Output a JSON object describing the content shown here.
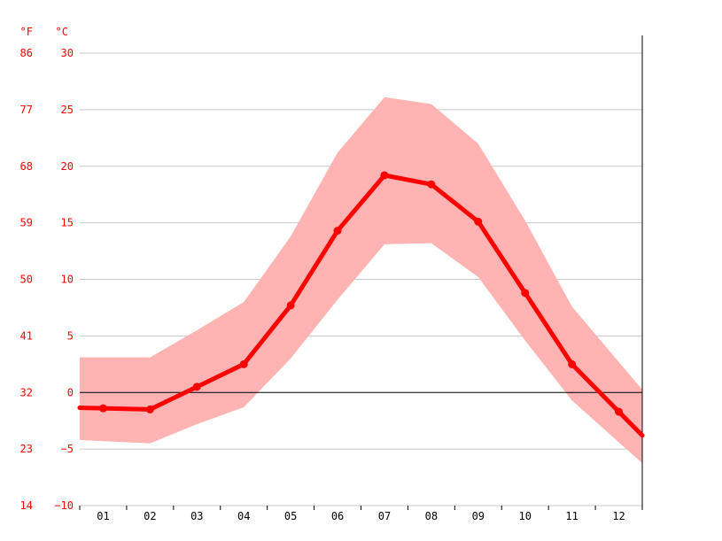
{
  "chart_data": {
    "type": "line",
    "unit_labels": {
      "fahrenheit": "°F",
      "celsius": "°C"
    },
    "y_celsius_ticks": [
      30,
      25,
      20,
      15,
      10,
      5,
      0,
      -5,
      -10
    ],
    "y_celsius_tick_labels": [
      "30",
      "25",
      "20",
      "15",
      "10",
      "5",
      "0",
      "−5",
      "−10"
    ],
    "y_fahrenheit_tick_labels": [
      "86",
      "77",
      "68",
      "59",
      "50",
      "41",
      "32",
      "23",
      "14"
    ],
    "ylim": [
      -10,
      30
    ],
    "categories": [
      "01",
      "02",
      "03",
      "04",
      "05",
      "06",
      "07",
      "08",
      "09",
      "10",
      "11",
      "12"
    ],
    "series": [
      {
        "values": [
          -1.4,
          -1.5,
          0.5,
          2.5,
          7.7,
          14.3,
          19.2,
          18.4,
          15.1,
          8.8,
          2.5,
          -1.7
        ]
      }
    ],
    "band": {
      "upper": [
        3.1,
        3.1,
        5.5,
        8.0,
        13.8,
        21.2,
        26.1,
        25.5,
        22.0,
        15.2,
        7.6,
        2.7
      ],
      "lower": [
        -4.3,
        -4.5,
        -2.8,
        -1.3,
        3.0,
        8.2,
        13.1,
        13.2,
        10.2,
        4.6,
        -0.7,
        -4.4
      ]
    },
    "grid": true,
    "zero_line": true,
    "colors": {
      "line": "#ff0000",
      "band": "#ffb3b3",
      "grid": "#c8c8c8",
      "axis": "#000000",
      "labels": "#ff0000"
    }
  }
}
